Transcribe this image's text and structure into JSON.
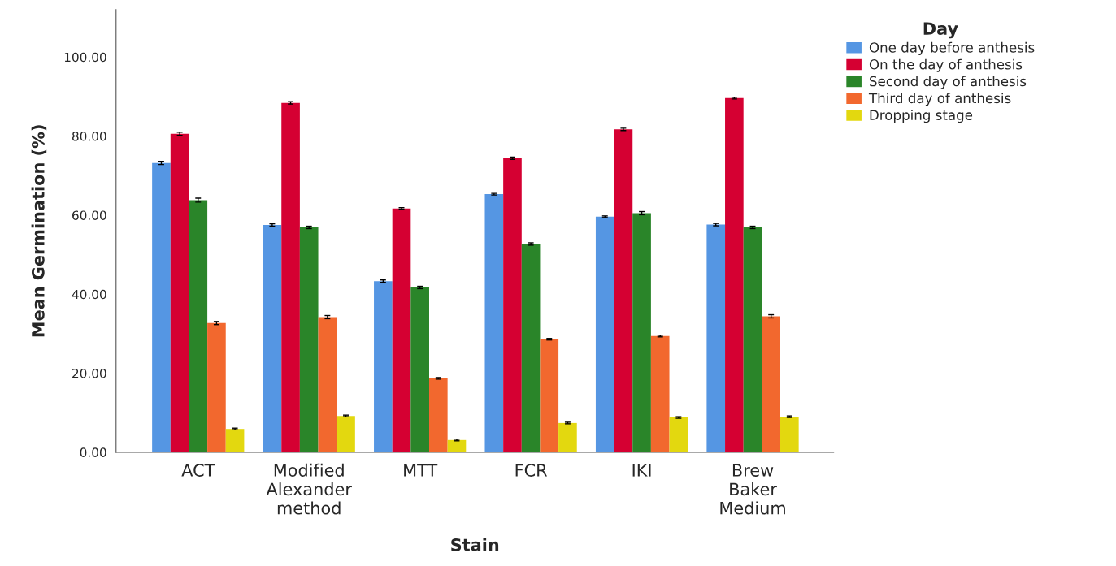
{
  "chart_data": {
    "type": "bar",
    "xlabel": "Stain",
    "ylabel": "Mean Germination (%)",
    "legend_title": "Day",
    "legend": "top right",
    "categories": [
      "ACT",
      "Modified\nAlexander\nmethod",
      "MTT",
      "FCR",
      "IKI",
      "Brew\nBaker\nMedium"
    ],
    "ylim": [
      0,
      112
    ],
    "yticks": [
      {
        "value": 0,
        "label": "0.00"
      },
      {
        "value": 20,
        "label": "20.00"
      },
      {
        "value": 40,
        "label": "40.00"
      },
      {
        "value": 60,
        "label": "60.00"
      },
      {
        "value": 80,
        "label": "80.00"
      },
      {
        "value": 100,
        "label": "100.00"
      }
    ],
    "grid": false,
    "series": [
      {
        "name": "One day before anthesis",
        "color": "#5596e3",
        "values": [
          73.2,
          57.5,
          43.3,
          65.3,
          59.6,
          57.6
        ],
        "errors": [
          0.4,
          0.3,
          0.3,
          0.2,
          0.2,
          0.3
        ]
      },
      {
        "name": "On the day of anthesis",
        "color": "#d50032",
        "values": [
          80.6,
          88.4,
          61.7,
          74.4,
          81.7,
          89.6
        ],
        "errors": [
          0.4,
          0.3,
          0.2,
          0.3,
          0.3,
          0.2
        ]
      },
      {
        "name": "Second day of anthesis",
        "color": "#2a8529",
        "values": [
          63.8,
          56.9,
          41.7,
          52.7,
          60.5,
          56.9
        ],
        "errors": [
          0.5,
          0.3,
          0.3,
          0.3,
          0.4,
          0.3
        ]
      },
      {
        "name": "Third day of anthesis",
        "color": "#f2682e",
        "values": [
          32.7,
          34.2,
          18.7,
          28.6,
          29.4,
          34.4
        ],
        "errors": [
          0.4,
          0.4,
          0.2,
          0.2,
          0.2,
          0.4
        ]
      },
      {
        "name": "Dropping stage",
        "color": "#e3d80f",
        "values": [
          5.9,
          9.2,
          3.1,
          7.4,
          8.8,
          9.0
        ],
        "errors": [
          0.2,
          0.2,
          0.2,
          0.2,
          0.2,
          0.2
        ]
      }
    ]
  }
}
